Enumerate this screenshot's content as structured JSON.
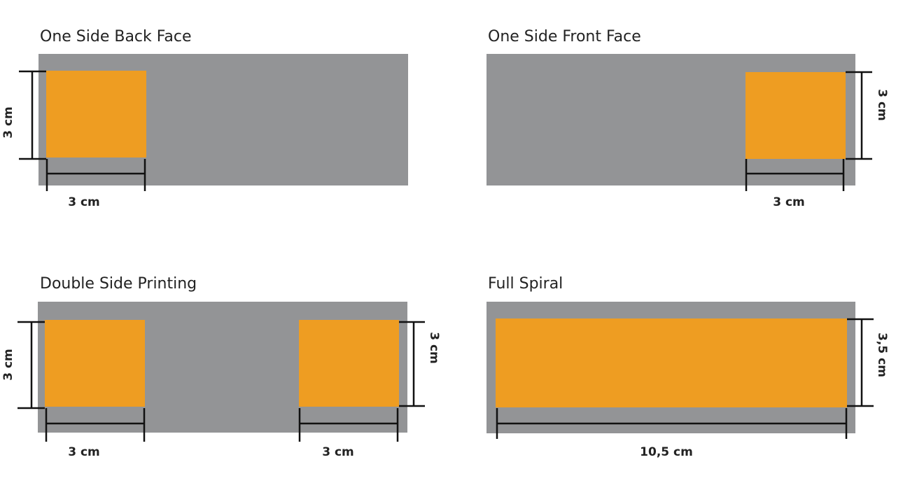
{
  "panels": [
    {
      "title": "One Side Back Face",
      "dimensions": [
        {
          "label": "3 cm"
        },
        {
          "label": "3 cm"
        }
      ]
    },
    {
      "title": "One Side Front Face",
      "dimensions": [
        {
          "label": "3 cm"
        },
        {
          "label": "3 cm"
        }
      ]
    },
    {
      "title": "Double Side Printing",
      "dimensions": [
        {
          "label": "3 cm"
        },
        {
          "label": "3 cm"
        },
        {
          "label": "3 cm"
        },
        {
          "label": "3 cm"
        }
      ]
    },
    {
      "title": "Full Spiral",
      "dimensions": [
        {
          "label": "3,5 cm"
        },
        {
          "label": "10,5 cm"
        }
      ]
    }
  ]
}
